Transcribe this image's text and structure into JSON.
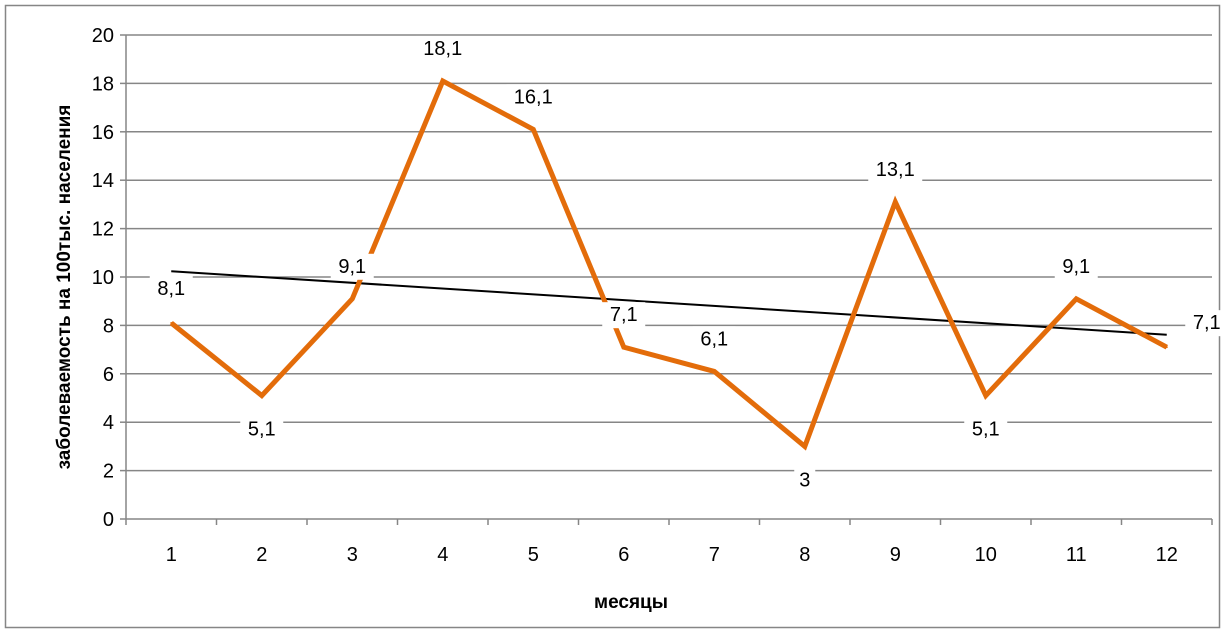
{
  "chart_data": {
    "type": "line",
    "title": "",
    "xlabel": "месяцы",
    "ylabel": "заболеваемость на 100тыс. населения",
    "categories": [
      "1",
      "2",
      "3",
      "4",
      "5",
      "6",
      "7",
      "8",
      "9",
      "10",
      "11",
      "12"
    ],
    "series": [
      {
        "values": [
          8.1,
          5.1,
          9.1,
          18.1,
          16.1,
          7.1,
          6.1,
          3,
          13.1,
          5.1,
          9.1,
          7.1
        ],
        "data_labels": [
          "8,1",
          "5,1",
          "9,1",
          "18,1",
          "16,1",
          "7,1",
          "6,1",
          "3",
          "13,1",
          "5,1",
          "9,1",
          "7,1"
        ],
        "color": "#e36c0a"
      }
    ],
    "trendline": {
      "type": "linear",
      "color": "#000000"
    },
    "ylim": [
      0,
      20
    ],
    "y_ticks": [
      "0",
      "2",
      "4",
      "6",
      "8",
      "10",
      "12",
      "14",
      "16",
      "18",
      "20"
    ],
    "grid": "horizontal",
    "legend": "none"
  }
}
